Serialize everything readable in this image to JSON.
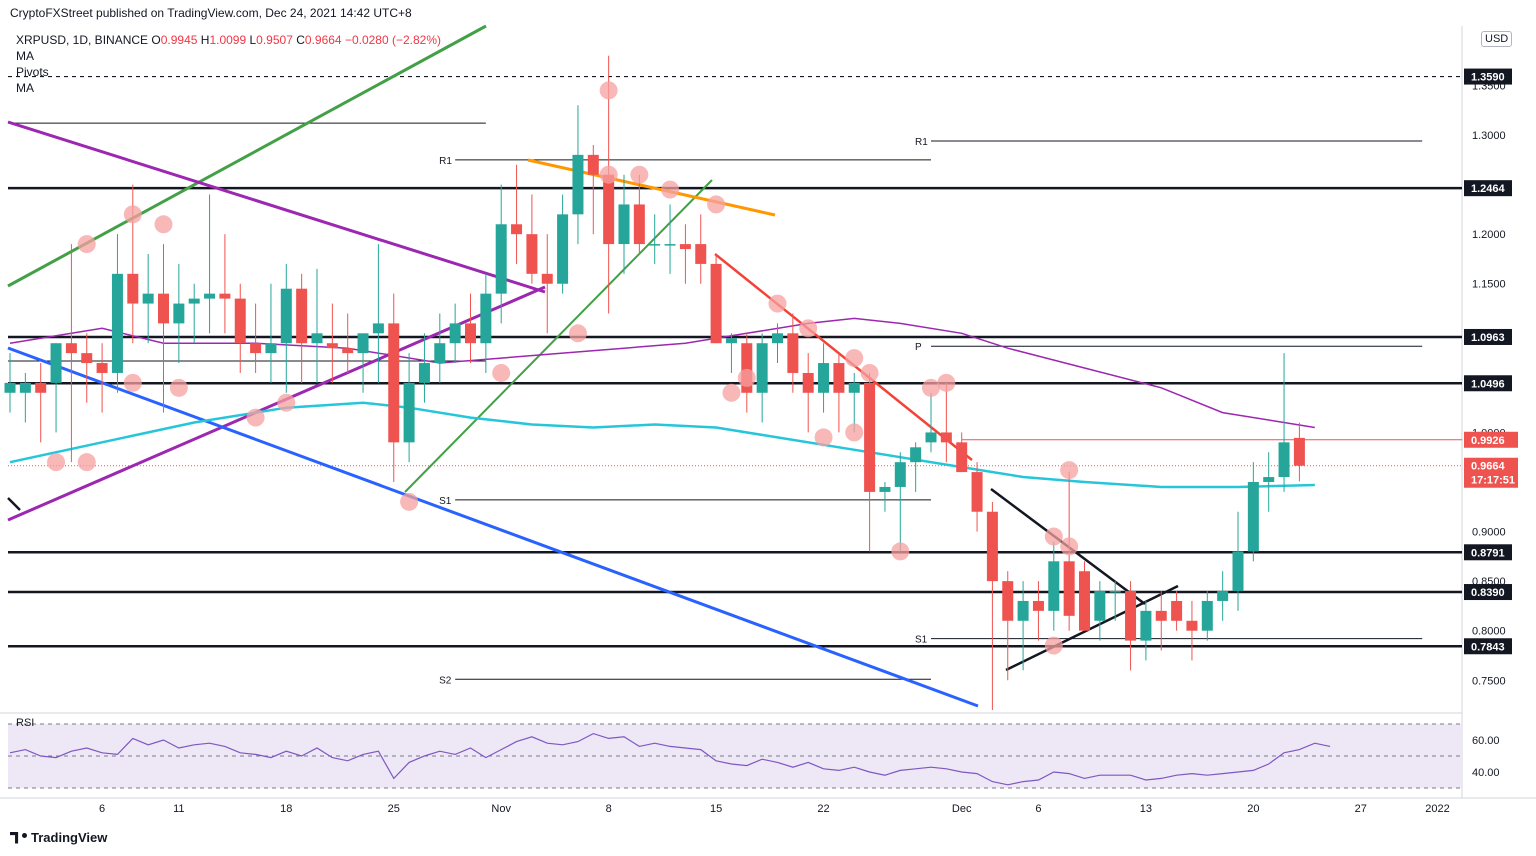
{
  "publisher": "CryptoFXStreet published on TradingView.com, Dec 24, 2021 14:42 UTC+8",
  "legend": {
    "symbol": "XRPUSD, 1D, BINANCE",
    "ohlc_o_label": "O",
    "ohlc_o": "0.9945",
    "ohlc_h_label": "H",
    "ohlc_h": "1.0099",
    "ohlc_l_label": "L",
    "ohlc_l": "0.9507",
    "ohlc_c_label": "C",
    "ohlc_c": "0.9664",
    "change": "−0.0280 (−2.82%)",
    "ma1": "MA",
    "pivots": "Pivots",
    "ma2": "MA"
  },
  "currency": "USD",
  "rsi_label": "RSI",
  "branding": "TradingView",
  "colors": {
    "up": "#26a69a",
    "down": "#ef5350",
    "ma_fast": "#9c27b0",
    "ma_slow": "#26c6da",
    "rsi": "#7e57c2"
  },
  "chart_data": {
    "type": "candlestick",
    "symbol": "XRPUSD",
    "timeframe": "1D",
    "ylim": [
      0.72,
      1.41
    ],
    "y_ticks": [
      "0.7500",
      "0.8000",
      "0.8500",
      "0.9000",
      "1.0000",
      "1.1500",
      "1.2000",
      "1.3000",
      "1.3500"
    ],
    "x_ticks": [
      {
        "label": "6",
        "x": 6
      },
      {
        "label": "11",
        "x": 11
      },
      {
        "label": "18",
        "x": 18
      },
      {
        "label": "25",
        "x": 25
      },
      {
        "label": "Nov",
        "x": 32
      },
      {
        "label": "8",
        "x": 39
      },
      {
        "label": "15",
        "x": 46
      },
      {
        "label": "22",
        "x": 53
      },
      {
        "label": "Dec",
        "x": 62
      },
      {
        "label": "6",
        "x": 67
      },
      {
        "label": "13",
        "x": 74
      },
      {
        "label": "20",
        "x": 81
      },
      {
        "label": "27",
        "x": 88
      },
      {
        "label": "2022",
        "x": 93
      }
    ],
    "candles": [
      {
        "o": 1.04,
        "h": 1.08,
        "l": 1.02,
        "c": 1.05
      },
      {
        "o": 1.04,
        "h": 1.06,
        "l": 1.01,
        "c": 1.05
      },
      {
        "o": 1.05,
        "h": 1.07,
        "l": 0.99,
        "c": 1.04
      },
      {
        "o": 1.05,
        "h": 1.09,
        "l": 1.0,
        "c": 1.09
      },
      {
        "o": 1.09,
        "h": 1.19,
        "l": 0.97,
        "c": 1.08
      },
      {
        "o": 1.08,
        "h": 1.1,
        "l": 1.03,
        "c": 1.07
      },
      {
        "o": 1.07,
        "h": 1.09,
        "l": 1.02,
        "c": 1.06
      },
      {
        "o": 1.06,
        "h": 1.2,
        "l": 1.04,
        "c": 1.16
      },
      {
        "o": 1.16,
        "h": 1.25,
        "l": 1.09,
        "c": 1.13
      },
      {
        "o": 1.13,
        "h": 1.18,
        "l": 1.09,
        "c": 1.14
      },
      {
        "o": 1.14,
        "h": 1.19,
        "l": 1.02,
        "c": 1.11
      },
      {
        "o": 1.11,
        "h": 1.17,
        "l": 1.07,
        "c": 1.13
      },
      {
        "o": 1.13,
        "h": 1.15,
        "l": 1.09,
        "c": 1.135
      },
      {
        "o": 1.135,
        "h": 1.24,
        "l": 1.1,
        "c": 1.14
      },
      {
        "o": 1.14,
        "h": 1.2,
        "l": 1.1,
        "c": 1.135
      },
      {
        "o": 1.135,
        "h": 1.15,
        "l": 1.06,
        "c": 1.09
      },
      {
        "o": 1.09,
        "h": 1.13,
        "l": 1.06,
        "c": 1.08
      },
      {
        "o": 1.08,
        "h": 1.15,
        "l": 1.05,
        "c": 1.09
      },
      {
        "o": 1.09,
        "h": 1.17,
        "l": 1.04,
        "c": 1.145
      },
      {
        "o": 1.145,
        "h": 1.16,
        "l": 1.05,
        "c": 1.09
      },
      {
        "o": 1.09,
        "h": 1.165,
        "l": 1.05,
        "c": 1.1
      },
      {
        "o": 1.09,
        "h": 1.13,
        "l": 1.05,
        "c": 1.085
      },
      {
        "o": 1.085,
        "h": 1.12,
        "l": 1.06,
        "c": 1.08
      },
      {
        "o": 1.08,
        "h": 1.1,
        "l": 1.04,
        "c": 1.1
      },
      {
        "o": 1.1,
        "h": 1.19,
        "l": 1.05,
        "c": 1.11
      },
      {
        "o": 1.11,
        "h": 1.14,
        "l": 0.95,
        "c": 0.99
      },
      {
        "o": 0.99,
        "h": 1.08,
        "l": 0.97,
        "c": 1.05
      },
      {
        "o": 1.05,
        "h": 1.1,
        "l": 1.03,
        "c": 1.07
      },
      {
        "o": 1.07,
        "h": 1.12,
        "l": 1.05,
        "c": 1.09
      },
      {
        "o": 1.09,
        "h": 1.13,
        "l": 1.07,
        "c": 1.11
      },
      {
        "o": 1.11,
        "h": 1.14,
        "l": 1.07,
        "c": 1.09
      },
      {
        "o": 1.09,
        "h": 1.16,
        "l": 1.06,
        "c": 1.14
      },
      {
        "o": 1.14,
        "h": 1.25,
        "l": 1.11,
        "c": 1.21
      },
      {
        "o": 1.21,
        "h": 1.27,
        "l": 1.17,
        "c": 1.2
      },
      {
        "o": 1.2,
        "h": 1.24,
        "l": 1.15,
        "c": 1.16
      },
      {
        "o": 1.16,
        "h": 1.2,
        "l": 1.1,
        "c": 1.15
      },
      {
        "o": 1.15,
        "h": 1.24,
        "l": 1.14,
        "c": 1.22
      },
      {
        "o": 1.22,
        "h": 1.33,
        "l": 1.19,
        "c": 1.28
      },
      {
        "o": 1.28,
        "h": 1.29,
        "l": 1.2,
        "c": 1.26
      },
      {
        "o": 1.26,
        "h": 1.38,
        "l": 1.12,
        "c": 1.19
      },
      {
        "o": 1.19,
        "h": 1.26,
        "l": 1.16,
        "c": 1.23
      },
      {
        "o": 1.23,
        "h": 1.26,
        "l": 1.18,
        "c": 1.19
      },
      {
        "o": 1.19,
        "h": 1.22,
        "l": 1.17,
        "c": 1.19
      },
      {
        "o": 1.19,
        "h": 1.23,
        "l": 1.16,
        "c": 1.19
      },
      {
        "o": 1.19,
        "h": 1.21,
        "l": 1.15,
        "c": 1.185
      },
      {
        "o": 1.19,
        "h": 1.22,
        "l": 1.15,
        "c": 1.17
      },
      {
        "o": 1.17,
        "h": 1.18,
        "l": 1.09,
        "c": 1.09
      },
      {
        "o": 1.09,
        "h": 1.1,
        "l": 1.06,
        "c": 1.095
      },
      {
        "o": 1.09,
        "h": 1.1,
        "l": 1.02,
        "c": 1.04
      },
      {
        "o": 1.04,
        "h": 1.1,
        "l": 1.01,
        "c": 1.09
      },
      {
        "o": 1.09,
        "h": 1.11,
        "l": 1.07,
        "c": 1.1
      },
      {
        "o": 1.1,
        "h": 1.12,
        "l": 1.04,
        "c": 1.06
      },
      {
        "o": 1.06,
        "h": 1.08,
        "l": 1.0,
        "c": 1.04
      },
      {
        "o": 1.04,
        "h": 1.09,
        "l": 1.02,
        "c": 1.07
      },
      {
        "o": 1.07,
        "h": 1.08,
        "l": 1.0,
        "c": 1.04
      },
      {
        "o": 1.04,
        "h": 1.06,
        "l": 1.0,
        "c": 1.05
      },
      {
        "o": 1.05,
        "h": 1.06,
        "l": 0.88,
        "c": 0.94
      },
      {
        "o": 0.94,
        "h": 0.95,
        "l": 0.92,
        "c": 0.945
      },
      {
        "o": 0.945,
        "h": 0.98,
        "l": 0.88,
        "c": 0.97
      },
      {
        "o": 0.97,
        "h": 0.99,
        "l": 0.94,
        "c": 0.985
      },
      {
        "o": 0.99,
        "h": 1.04,
        "l": 0.98,
        "c": 1.0
      },
      {
        "o": 1.0,
        "h": 1.05,
        "l": 0.97,
        "c": 0.99
      },
      {
        "o": 0.99,
        "h": 1.0,
        "l": 0.96,
        "c": 0.96
      },
      {
        "o": 0.96,
        "h": 0.97,
        "l": 0.9,
        "c": 0.92
      },
      {
        "o": 0.92,
        "h": 0.93,
        "l": 0.72,
        "c": 0.85
      },
      {
        "o": 0.85,
        "h": 0.86,
        "l": 0.75,
        "c": 0.81
      },
      {
        "o": 0.81,
        "h": 0.85,
        "l": 0.76,
        "c": 0.83
      },
      {
        "o": 0.83,
        "h": 0.85,
        "l": 0.79,
        "c": 0.82
      },
      {
        "o": 0.82,
        "h": 0.89,
        "l": 0.8,
        "c": 0.87
      },
      {
        "o": 0.87,
        "h": 0.96,
        "l": 0.8,
        "c": 0.815
      },
      {
        "o": 0.86,
        "h": 0.87,
        "l": 0.8,
        "c": 0.8
      },
      {
        "o": 0.81,
        "h": 0.85,
        "l": 0.79,
        "c": 0.84
      },
      {
        "o": 0.84,
        "h": 0.85,
        "l": 0.81,
        "c": 0.84
      },
      {
        "o": 0.84,
        "h": 0.85,
        "l": 0.76,
        "c": 0.79
      },
      {
        "o": 0.79,
        "h": 0.83,
        "l": 0.77,
        "c": 0.82
      },
      {
        "o": 0.82,
        "h": 0.84,
        "l": 0.78,
        "c": 0.81
      },
      {
        "o": 0.83,
        "h": 0.84,
        "l": 0.8,
        "c": 0.81
      },
      {
        "o": 0.81,
        "h": 0.83,
        "l": 0.77,
        "c": 0.8
      },
      {
        "o": 0.8,
        "h": 0.84,
        "l": 0.79,
        "c": 0.83
      },
      {
        "o": 0.83,
        "h": 0.86,
        "l": 0.81,
        "c": 0.84
      },
      {
        "o": 0.84,
        "h": 0.92,
        "l": 0.82,
        "c": 0.88
      },
      {
        "o": 0.88,
        "h": 0.97,
        "l": 0.87,
        "c": 0.95
      },
      {
        "o": 0.95,
        "h": 0.98,
        "l": 0.92,
        "c": 0.955
      },
      {
        "o": 0.955,
        "h": 1.08,
        "l": 0.94,
        "c": 0.99
      },
      {
        "o": 0.9945,
        "h": 1.0099,
        "l": 0.9507,
        "c": 0.9664
      }
    ],
    "ma_fast": [
      [
        0,
        1.09
      ],
      [
        6,
        1.105
      ],
      [
        10,
        1.09
      ],
      [
        16,
        1.09
      ],
      [
        22,
        1.085
      ],
      [
        28,
        1.07
      ],
      [
        32,
        1.075
      ],
      [
        36,
        1.08
      ],
      [
        40,
        1.085
      ],
      [
        44,
        1.09
      ],
      [
        48,
        1.1
      ],
      [
        52,
        1.11
      ],
      [
        55,
        1.115
      ],
      [
        58,
        1.11
      ],
      [
        62,
        1.1
      ],
      [
        65,
        1.085
      ],
      [
        70,
        1.065
      ],
      [
        75,
        1.045
      ],
      [
        79,
        1.02
      ],
      [
        83,
        1.01
      ],
      [
        85,
        1.005
      ]
    ],
    "ma_slow": [
      [
        0,
        0.97
      ],
      [
        6,
        0.99
      ],
      [
        12,
        1.01
      ],
      [
        18,
        1.025
      ],
      [
        23,
        1.03
      ],
      [
        26,
        1.025
      ],
      [
        30,
        1.015
      ],
      [
        34,
        1.008
      ],
      [
        38,
        1.005
      ],
      [
        42,
        1.008
      ],
      [
        46,
        1.005
      ],
      [
        50,
        0.995
      ],
      [
        54,
        0.985
      ],
      [
        58,
        0.975
      ],
      [
        62,
        0.965
      ],
      [
        66,
        0.955
      ],
      [
        70,
        0.95
      ],
      [
        75,
        0.945
      ],
      [
        80,
        0.945
      ],
      [
        85,
        0.947
      ]
    ],
    "levels": [
      {
        "label": "1.3590",
        "value": 1.359,
        "style": "dashed"
      },
      {
        "label": "1.2464",
        "value": 1.2464,
        "style": "solid"
      },
      {
        "label": "1.0963",
        "value": 1.0963,
        "style": "solid"
      },
      {
        "label": "1.0496",
        "value": 1.0496,
        "style": "solid"
      },
      {
        "label": "0.8791",
        "value": 0.8791,
        "style": "solid"
      },
      {
        "label": "0.8390",
        "value": 0.839,
        "style": "solid"
      },
      {
        "label": "0.7843",
        "value": 0.7843,
        "style": "solid"
      }
    ],
    "price_tags": [
      {
        "label": "0.9926",
        "value": 0.9926
      },
      {
        "label": "0.9664",
        "value": 0.9664,
        "sub": "17:17:51"
      }
    ],
    "pivots": [
      {
        "label": "R1",
        "value": 1.275,
        "from": 29,
        "to": 60
      },
      {
        "label": "S1",
        "value": 0.932,
        "from": 29,
        "to": 60
      },
      {
        "label": "S2",
        "value": 0.751,
        "from": 29,
        "to": 60
      },
      {
        "label": "R1",
        "value": 1.294,
        "from": 60,
        "to": 92
      },
      {
        "label": "P",
        "value": 1.087,
        "from": 60,
        "to": 92
      },
      {
        "label": "S1",
        "value": 0.792,
        "from": 60,
        "to": 92
      }
    ],
    "rsi": {
      "ticks": [
        "60.00",
        "40.00"
      ],
      "values": [
        52,
        54,
        50,
        49,
        53,
        55,
        52,
        51,
        61,
        57,
        60,
        55,
        57,
        58,
        56,
        52,
        51,
        49,
        53,
        50,
        55,
        49,
        47,
        51,
        53,
        36,
        46,
        50,
        53,
        51,
        55,
        49,
        54,
        59,
        62,
        58,
        57,
        59,
        64,
        61,
        62,
        56,
        58,
        56,
        55,
        54,
        47,
        45,
        44,
        48,
        46,
        43,
        46,
        42,
        41,
        43,
        40,
        38,
        41,
        42,
        43,
        42,
        40,
        39,
        34,
        32,
        34,
        35,
        40,
        39,
        36,
        38,
        38,
        38,
        35,
        36,
        38,
        39,
        38,
        39,
        40,
        41,
        45,
        52,
        54,
        58,
        56
      ]
    }
  }
}
